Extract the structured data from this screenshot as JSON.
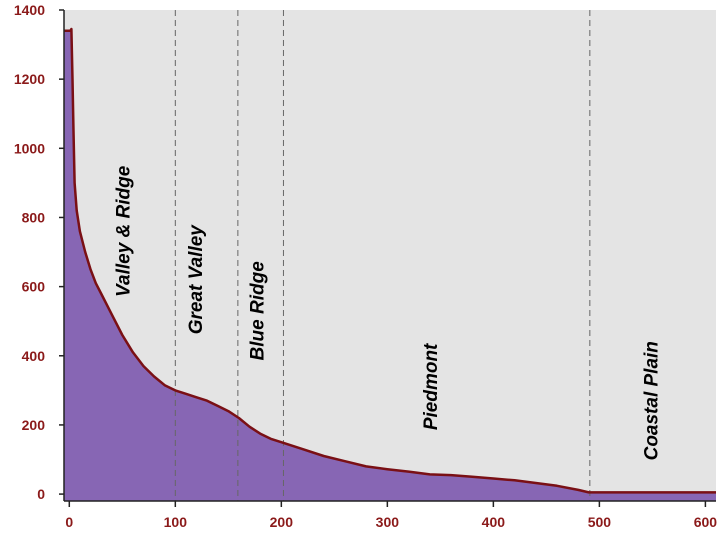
{
  "chart_data": {
    "type": "area",
    "title": "",
    "xlabel": "",
    "ylabel": "",
    "xlim": [
      -5,
      610
    ],
    "ylim": [
      -20,
      1400
    ],
    "x_ticks": [
      0,
      100,
      200,
      300,
      400,
      500,
      600
    ],
    "y_ticks": [
      0,
      200,
      400,
      600,
      800,
      1000,
      1200,
      1400
    ],
    "grid": false,
    "colors": {
      "fill": "#8766b4",
      "line": "#7a1015",
      "plot_bg": "#e4e4e4",
      "ticks": "#8b1a1a"
    },
    "series": [
      {
        "x": [
          -5,
          1,
          2,
          3,
          4,
          5,
          7,
          10,
          15,
          20,
          25,
          30,
          40,
          50,
          60,
          70,
          80,
          90,
          100,
          110,
          120,
          130,
          140,
          150,
          160,
          170,
          180,
          190,
          200,
          220,
          240,
          260,
          280,
          300,
          320,
          340,
          360,
          380,
          400,
          420,
          440,
          460,
          480,
          490,
          500,
          520,
          550,
          580,
          610
        ],
        "y": [
          1340,
          1340,
          1345,
          1200,
          1050,
          900,
          820,
          760,
          700,
          650,
          610,
          580,
          520,
          460,
          410,
          370,
          340,
          315,
          300,
          290,
          280,
          270,
          255,
          240,
          220,
          195,
          175,
          160,
          150,
          130,
          110,
          95,
          80,
          72,
          65,
          57,
          55,
          50,
          45,
          40,
          32,
          24,
          12,
          5,
          5,
          5,
          5,
          5,
          5
        ]
      }
    ],
    "dividers": [
      100,
      159,
      202,
      491
    ],
    "regions": [
      {
        "label": "Valley & Ridge",
        "x": 57,
        "y": 760
      },
      {
        "label": "Great Valley",
        "x": 125,
        "y": 620
      },
      {
        "label": "Blue Ridge",
        "x": 183,
        "y": 530
      },
      {
        "label": "Piedmont",
        "x": 347,
        "y": 310
      },
      {
        "label": "Coastal Plain",
        "x": 555,
        "y": 270
      }
    ]
  }
}
